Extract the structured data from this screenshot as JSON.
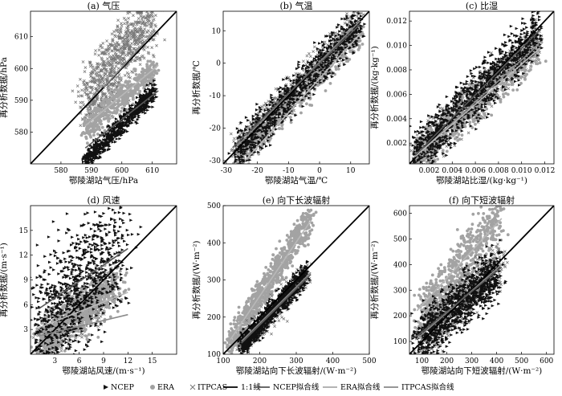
{
  "chart_data": [
    {
      "type": "scatter",
      "title": "(a) 气压",
      "xlabel": "鄂陵湖站气压/hPa",
      "ylabel": "再分析数据/hPa",
      "xlim": [
        570,
        618
      ],
      "ylim": [
        570,
        618
      ],
      "xticks": [
        580,
        590,
        600,
        610
      ],
      "yticks": [
        580,
        590,
        600,
        610
      ],
      "clusters": [
        {
          "series": "ITPCAS",
          "x": [
            588,
            610
          ],
          "y": [
            588,
            618
          ],
          "n": 900,
          "spread": 5.5
        },
        {
          "series": "ERA",
          "x": [
            588,
            611
          ],
          "y": [
            581,
            600
          ],
          "n": 500,
          "spread": 2.2
        },
        {
          "series": "NCEP",
          "x": [
            588,
            611
          ],
          "y": [
            571,
            593
          ],
          "n": 700,
          "spread": 1.6
        }
      ],
      "fit_lines": [
        {
          "series": "ITPCAS拟合线",
          "x": [
            594,
            611
          ],
          "y": [
            594,
            612
          ]
        },
        {
          "series": "ERA拟合线",
          "x": [
            588,
            612
          ],
          "y": [
            582,
            601
          ]
        },
        {
          "series": "NCEP拟合线",
          "x": [
            588,
            612
          ],
          "y": [
            575,
            593
          ]
        }
      ]
    },
    {
      "type": "scatter",
      "title": "(b) 气温",
      "xlabel": "鄂陵湖站气温/℃",
      "ylabel": "再分析数据/℃",
      "xlim": [
        -31,
        16
      ],
      "ylim": [
        -31,
        16
      ],
      "xticks": [
        -30,
        -20,
        -10,
        0,
        10
      ],
      "yticks": [
        -30,
        -20,
        -10,
        0,
        10
      ],
      "clusters": [
        {
          "series": "ITPCAS",
          "x": [
            -27,
            13
          ],
          "y": [
            -27,
            13
          ],
          "n": 600,
          "spread": 2.6
        },
        {
          "series": "ERA",
          "x": [
            -27,
            13
          ],
          "y": [
            -30,
            10
          ],
          "n": 600,
          "spread": 2.4
        },
        {
          "series": "NCEP",
          "x": [
            -27,
            13
          ],
          "y": [
            -28,
            12
          ],
          "n": 900,
          "spread": 3.0
        }
      ],
      "fit_lines": [
        {
          "series": "ITPCAS拟合线",
          "x": [
            -27,
            13
          ],
          "y": [
            -26,
            13
          ]
        },
        {
          "series": "ERA拟合线",
          "x": [
            -24,
            13
          ],
          "y": [
            -30,
            9
          ]
        },
        {
          "series": "NCEP拟合线",
          "x": [
            -28,
            13
          ],
          "y": [
            -26,
            12
          ]
        }
      ]
    },
    {
      "type": "scatter",
      "title": "(c) 比湿",
      "xlabel": "鄂陵湖站比湿/(kg·kg⁻¹)",
      "ylabel": "再分析数据/(kg·kg⁻¹)",
      "xlim": [
        0.0003,
        0.0128
      ],
      "ylim": [
        0.0003,
        0.0128
      ],
      "xticks": [
        0.002,
        0.004,
        0.006,
        0.008,
        0.01,
        0.012
      ],
      "yticks": [
        0.002,
        0.004,
        0.006,
        0.008,
        0.01,
        0.012
      ],
      "clusters": [
        {
          "series": "ITPCAS",
          "x": [
            0.0008,
            0.0115
          ],
          "y": [
            0.0008,
            0.0105
          ],
          "n": 600,
          "spread": 0.0008
        },
        {
          "series": "ERA",
          "x": [
            0.0008,
            0.0115
          ],
          "y": [
            0.0008,
            0.01
          ],
          "n": 700,
          "spread": 0.0008
        },
        {
          "series": "NCEP",
          "x": [
            0.0008,
            0.0115
          ],
          "y": [
            0.0009,
            0.0112
          ],
          "n": 1000,
          "spread": 0.001
        }
      ],
      "fit_lines": [
        {
          "series": "ITPCAS拟合线",
          "x": [
            0.0008,
            0.0115
          ],
          "y": [
            0.0009,
            0.0101
          ]
        },
        {
          "series": "ERA拟合线",
          "x": [
            0.0008,
            0.0115
          ],
          "y": [
            0.0009,
            0.0097
          ]
        },
        {
          "series": "NCEP拟合线",
          "x": [
            0.0008,
            0.0115
          ],
          "y": [
            0.001,
            0.0112
          ]
        }
      ]
    },
    {
      "type": "scatter",
      "title": "(d) 风速",
      "xlabel": "鄂陵湖站风速/(m·s⁻¹)",
      "ylabel": "再分析数据/(m·s⁻¹)",
      "xlim": [
        0,
        18
      ],
      "ylim": [
        0,
        18
      ],
      "xticks": [
        3,
        6,
        9,
        12,
        15
      ],
      "yticks": [
        3,
        6,
        9,
        12,
        15
      ],
      "clusters": [
        {
          "series": "ITPCAS",
          "x": [
            1,
            9
          ],
          "y": [
            1,
            7
          ],
          "n": 500,
          "spread": 1.2
        },
        {
          "series": "ERA",
          "x": [
            1,
            11
          ],
          "y": [
            1,
            9
          ],
          "n": 700,
          "spread": 1.5
        },
        {
          "series": "NCEP",
          "x": [
            1,
            11
          ],
          "y": [
            2,
            14
          ],
          "n": 900,
          "spread": 3.5
        }
      ],
      "fit_lines": [
        {
          "series": "ITPCAS拟合线",
          "x": [
            1,
            12
          ],
          "y": [
            2.2,
            4.8
          ]
        },
        {
          "series": "ERA拟合线",
          "x": [
            1,
            12
          ],
          "y": [
            3.2,
            7.5
          ]
        },
        {
          "series": "NCEP拟合线",
          "x": [
            1,
            12
          ],
          "y": [
            5.5,
            12.8
          ]
        }
      ]
    },
    {
      "type": "scatter",
      "title": "(e) 向下长波辐射",
      "xlabel": "鄂陵湖站向下长波辐射/(W·m⁻²)",
      "ylabel": "再分析数据/(W·m⁻²)",
      "xlim": [
        100,
        500
      ],
      "ylim": [
        100,
        500
      ],
      "xticks": [
        100,
        200,
        300,
        400,
        500
      ],
      "yticks": [
        100,
        200,
        300,
        400,
        500
      ],
      "clusters": [
        {
          "series": "ERA",
          "x": [
            120,
            340
          ],
          "y": [
            130,
            470
          ],
          "n": 800,
          "spread": 20
        },
        {
          "series": "ITPCAS",
          "x": [
            150,
            330
          ],
          "y": [
            120,
            320
          ],
          "n": 400,
          "spread": 18
        },
        {
          "series": "NCEP",
          "x": [
            150,
            330
          ],
          "y": [
            120,
            320
          ],
          "n": 900,
          "spread": 15
        }
      ],
      "fit_lines": [
        {
          "series": "ITPCAS拟合线",
          "x": [
            150,
            340
          ],
          "y": [
            135,
            320
          ]
        },
        {
          "series": "ERA拟合线",
          "x": [
            120,
            340
          ],
          "y": [
            140,
            460
          ]
        },
        {
          "series": "NCEP拟合线",
          "x": [
            150,
            340
          ],
          "y": [
            130,
            315
          ]
        }
      ]
    },
    {
      "type": "scatter",
      "title": "(f) 向下短波辐射",
      "xlabel": "鄂陵湖站向下短波辐射/(W·m⁻²)",
      "ylabel": "再分析数据/(W·m⁻²)",
      "xlim": [
        50,
        630
      ],
      "ylim": [
        50,
        630
      ],
      "xticks": [
        100,
        200,
        300,
        400,
        500,
        600
      ],
      "yticks": [
        100,
        200,
        300,
        400,
        500,
        600
      ],
      "clusters": [
        {
          "series": "ERA",
          "x": [
            90,
            410
          ],
          "y": [
            180,
            600
          ],
          "n": 700,
          "spread": 50
        },
        {
          "series": "ITPCAS",
          "x": [
            90,
            420
          ],
          "y": [
            90,
            420
          ],
          "n": 500,
          "spread": 45
        },
        {
          "series": "NCEP",
          "x": [
            90,
            410
          ],
          "y": [
            110,
            380
          ],
          "n": 1000,
          "spread": 50
        }
      ],
      "fit_lines": [
        {
          "series": "ITPCAS拟合线",
          "x": [
            80,
            420
          ],
          "y": [
            110,
            400
          ]
        },
        {
          "series": "ERA拟合线",
          "x": [
            80,
            420
          ],
          "y": [
            220,
            580
          ]
        },
        {
          "series": "NCEP拟合线",
          "x": [
            80,
            420
          ],
          "y": [
            120,
            390
          ]
        }
      ]
    }
  ],
  "legend": {
    "placement": "bottom",
    "items": [
      {
        "label": "NCEP",
        "kind": "triangle",
        "color": "#111111"
      },
      {
        "label": "ERA",
        "kind": "circle",
        "color": "#a0a0a0"
      },
      {
        "label": "ITPCAS",
        "kind": "cross",
        "color": "#777777"
      },
      {
        "label": "1:1线",
        "kind": "line",
        "color": "#000000"
      },
      {
        "label": "NCEP拟合线",
        "kind": "line",
        "color": "#555555"
      },
      {
        "label": "ERA拟合线",
        "kind": "line",
        "color": "#aaaaaa"
      },
      {
        "label": "ITPCAS拟合线",
        "kind": "line",
        "color": "#888888"
      }
    ]
  },
  "colors": {
    "NCEP": "#111111",
    "ERA": "#a3a3a3",
    "ITPCAS": "#7a7a7a",
    "one_to_one": "#000000"
  }
}
